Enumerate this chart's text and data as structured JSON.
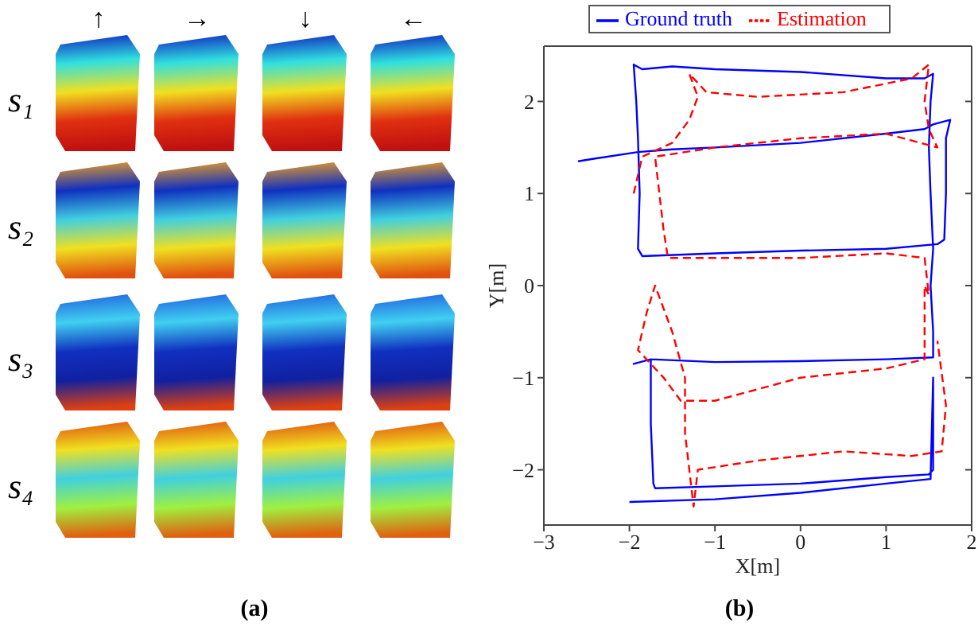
{
  "chart_data": [
    {
      "type": "other",
      "annotations": [
        "↑",
        "→",
        "↓",
        "←",
        "s₁",
        "s₂",
        "s₃",
        "s₄",
        "(a)"
      ]
    },
    {
      "type": "line",
      "xlabel": "X[m]",
      "ylabel": "Y[m]",
      "annotations": [
        "(b)"
      ],
      "legend": "top",
      "marker": "none",
      "xlim": [
        -3,
        2
      ],
      "ylim": [
        -2.6,
        2.6
      ],
      "xticks": [
        -3,
        -2,
        -1,
        0,
        1,
        2
      ],
      "yticks": [
        -2,
        -1,
        0,
        1,
        2
      ],
      "series": [
        {
          "name": "Ground truth",
          "color": "#0000ff",
          "line_style": "solid",
          "x": [
            -2.6,
            -2.4,
            -1.9,
            -1.5,
            -1,
            0,
            1,
            1.45,
            1.55,
            1.75,
            1.7,
            1.7,
            1.68,
            1.6,
            1,
            0,
            -1,
            -1.85,
            -1.9,
            -1.88,
            -1.9,
            -1.92,
            -1.95,
            -1.85,
            -1.5,
            -1,
            0,
            1,
            1.45,
            1.55,
            1.52,
            1.5,
            1.52,
            1.55,
            1.52,
            1.55,
            1.55,
            1,
            0,
            -1,
            -1.75,
            -1.95,
            -1.75,
            -1.75,
            -1.72,
            -1.7,
            -1,
            0,
            1,
            1.5,
            1.55,
            1.55,
            1.55,
            1.52,
            1,
            0,
            -1,
            -2
          ],
          "values": [
            1.35,
            1.38,
            1.45,
            1.48,
            1.5,
            1.55,
            1.65,
            1.7,
            1.75,
            1.8,
            1.6,
            1.0,
            0.5,
            0.45,
            0.4,
            0.38,
            0.35,
            0.32,
            0.4,
            1.0,
            1.6,
            2.0,
            2.4,
            2.35,
            2.38,
            2.35,
            2.32,
            2.25,
            2.25,
            2.3,
            2.0,
            1.5,
            1.0,
            0.4,
            0,
            -0.5,
            -0.78,
            -0.8,
            -0.82,
            -0.83,
            -0.8,
            -0.85,
            -0.8,
            -1.5,
            -2.15,
            -2.2,
            -2.18,
            -2.15,
            -2.08,
            -2.05,
            -2.0,
            -1.5,
            -1.0,
            -2.1,
            -2.15,
            -2.25,
            -2.32,
            -2.35
          ]
        },
        {
          "name": "Estimation",
          "color": "#ff0000",
          "line_style": "dashed",
          "x": [
            -1.95,
            -1.85,
            -1.5,
            -1.3,
            -1.2,
            -1.3,
            -1.1,
            -0.5,
            0.5,
            1.3,
            1.5,
            1.45,
            1.5,
            1.6,
            1,
            0,
            -1,
            -1.7,
            -1.65,
            -1.6,
            -1.55,
            -1,
            0,
            1,
            1.45,
            1.5,
            1.45,
            1.45,
            1.45,
            1,
            0,
            -1,
            -1.4,
            -1.6,
            -1.9,
            -1.8,
            -1.7,
            -1.5,
            -1.35,
            -1.35,
            -1.3,
            -1.25,
            -1.2,
            -0.5,
            0.5,
            1.3,
            1.65,
            1.7,
            1.6
          ],
          "values": [
            1.0,
            1.4,
            1.55,
            1.8,
            2.05,
            2.3,
            2.1,
            2.05,
            2.1,
            2.25,
            2.4,
            2.0,
            1.7,
            1.5,
            1.65,
            1.6,
            1.5,
            1.4,
            1.0,
            0.6,
            0.3,
            0.3,
            0.3,
            0.35,
            0.3,
            -0.1,
            0,
            -0.5,
            -0.8,
            -0.9,
            -1.0,
            -1.25,
            -1.25,
            -1.0,
            -0.7,
            -0.3,
            0,
            -0.5,
            -1.0,
            -1.6,
            -2.0,
            -2.4,
            -2.0,
            -1.9,
            -1.8,
            -1.85,
            -1.8,
            -1.3,
            -0.6
          ]
        }
      ]
    }
  ]
}
